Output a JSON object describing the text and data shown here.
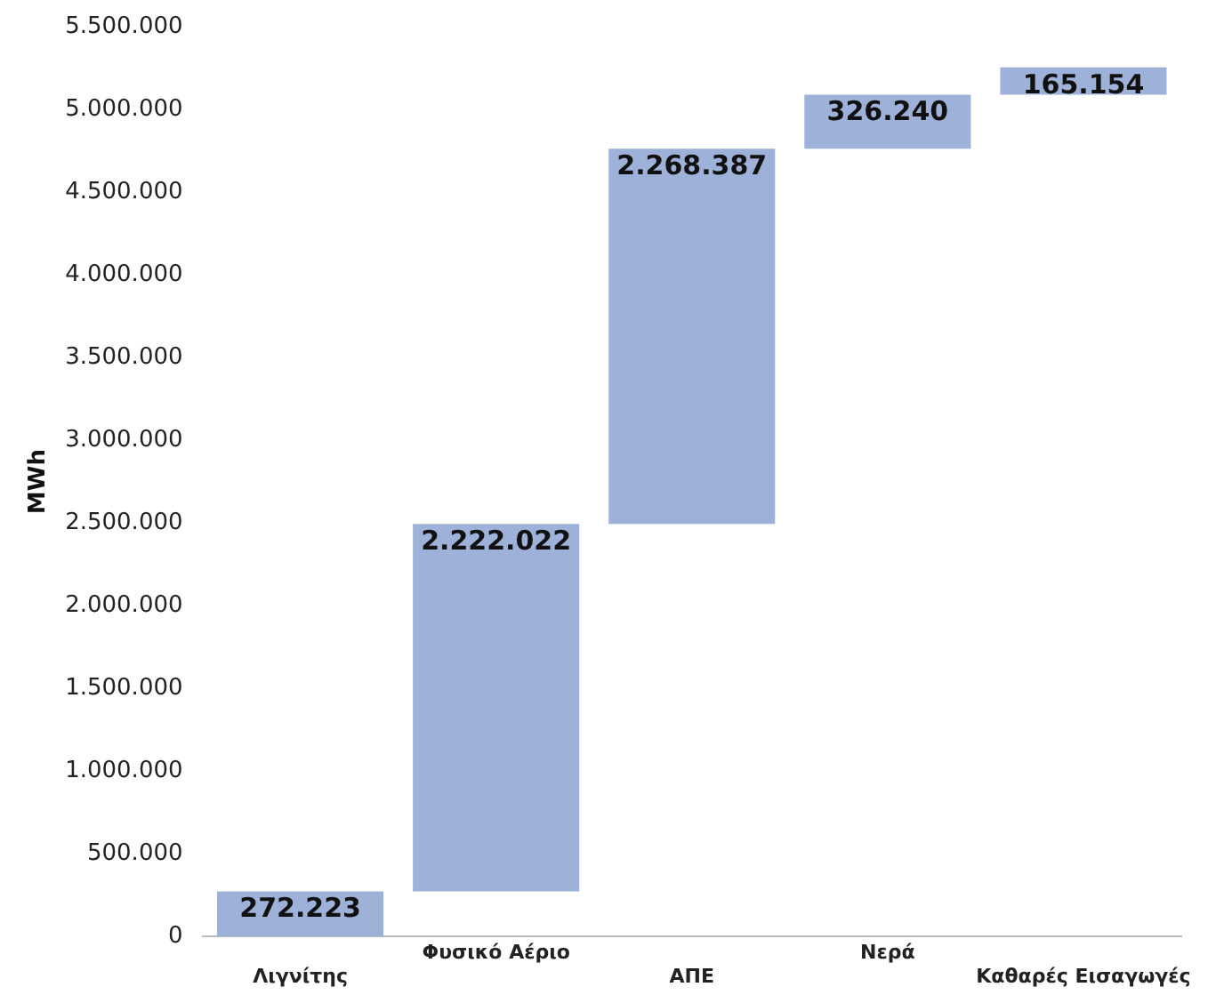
{
  "chart_data": {
    "type": "bar",
    "ylabel": "MWh",
    "categories": [
      "Λιγνίτης",
      "Φυσικό Αέριο",
      "ΑΠΕ",
      "Νερά",
      "Καθαρές Εισαγωγές"
    ],
    "values": [
      272223,
      2222022,
      2268387,
      326240,
      165154
    ],
    "base": [
      0,
      272223,
      2494245,
      4762632,
      5088872
    ],
    "value_labels": [
      "272.223",
      "2.222.022",
      "2.268.387",
      "326.240",
      "165.154"
    ],
    "color": "#9db1d9",
    "ylim": [
      0,
      5500000
    ],
    "yticks": [
      0,
      {
        "value": 500000,
        "label": "500.000"
      },
      {
        "value": 1000000,
        "label": "1.000.000"
      },
      {
        "value": 1500000,
        "label": "1.500.000"
      },
      {
        "value": 2000000,
        "label": "2.000.000"
      },
      {
        "value": 2500000,
        "label": "2.500.000"
      },
      {
        "value": 3000000,
        "label": "3.000.000"
      },
      {
        "value": 3500000,
        "label": "3.500.000"
      },
      {
        "value": 4000000,
        "label": "4.000.000"
      },
      {
        "value": 4500000,
        "label": "4.500.000"
      },
      {
        "value": 5000000,
        "label": "5.000.000"
      },
      {
        "value": 5500000,
        "label": "5.500.000"
      }
    ],
    "grid": false,
    "legend": false
  }
}
